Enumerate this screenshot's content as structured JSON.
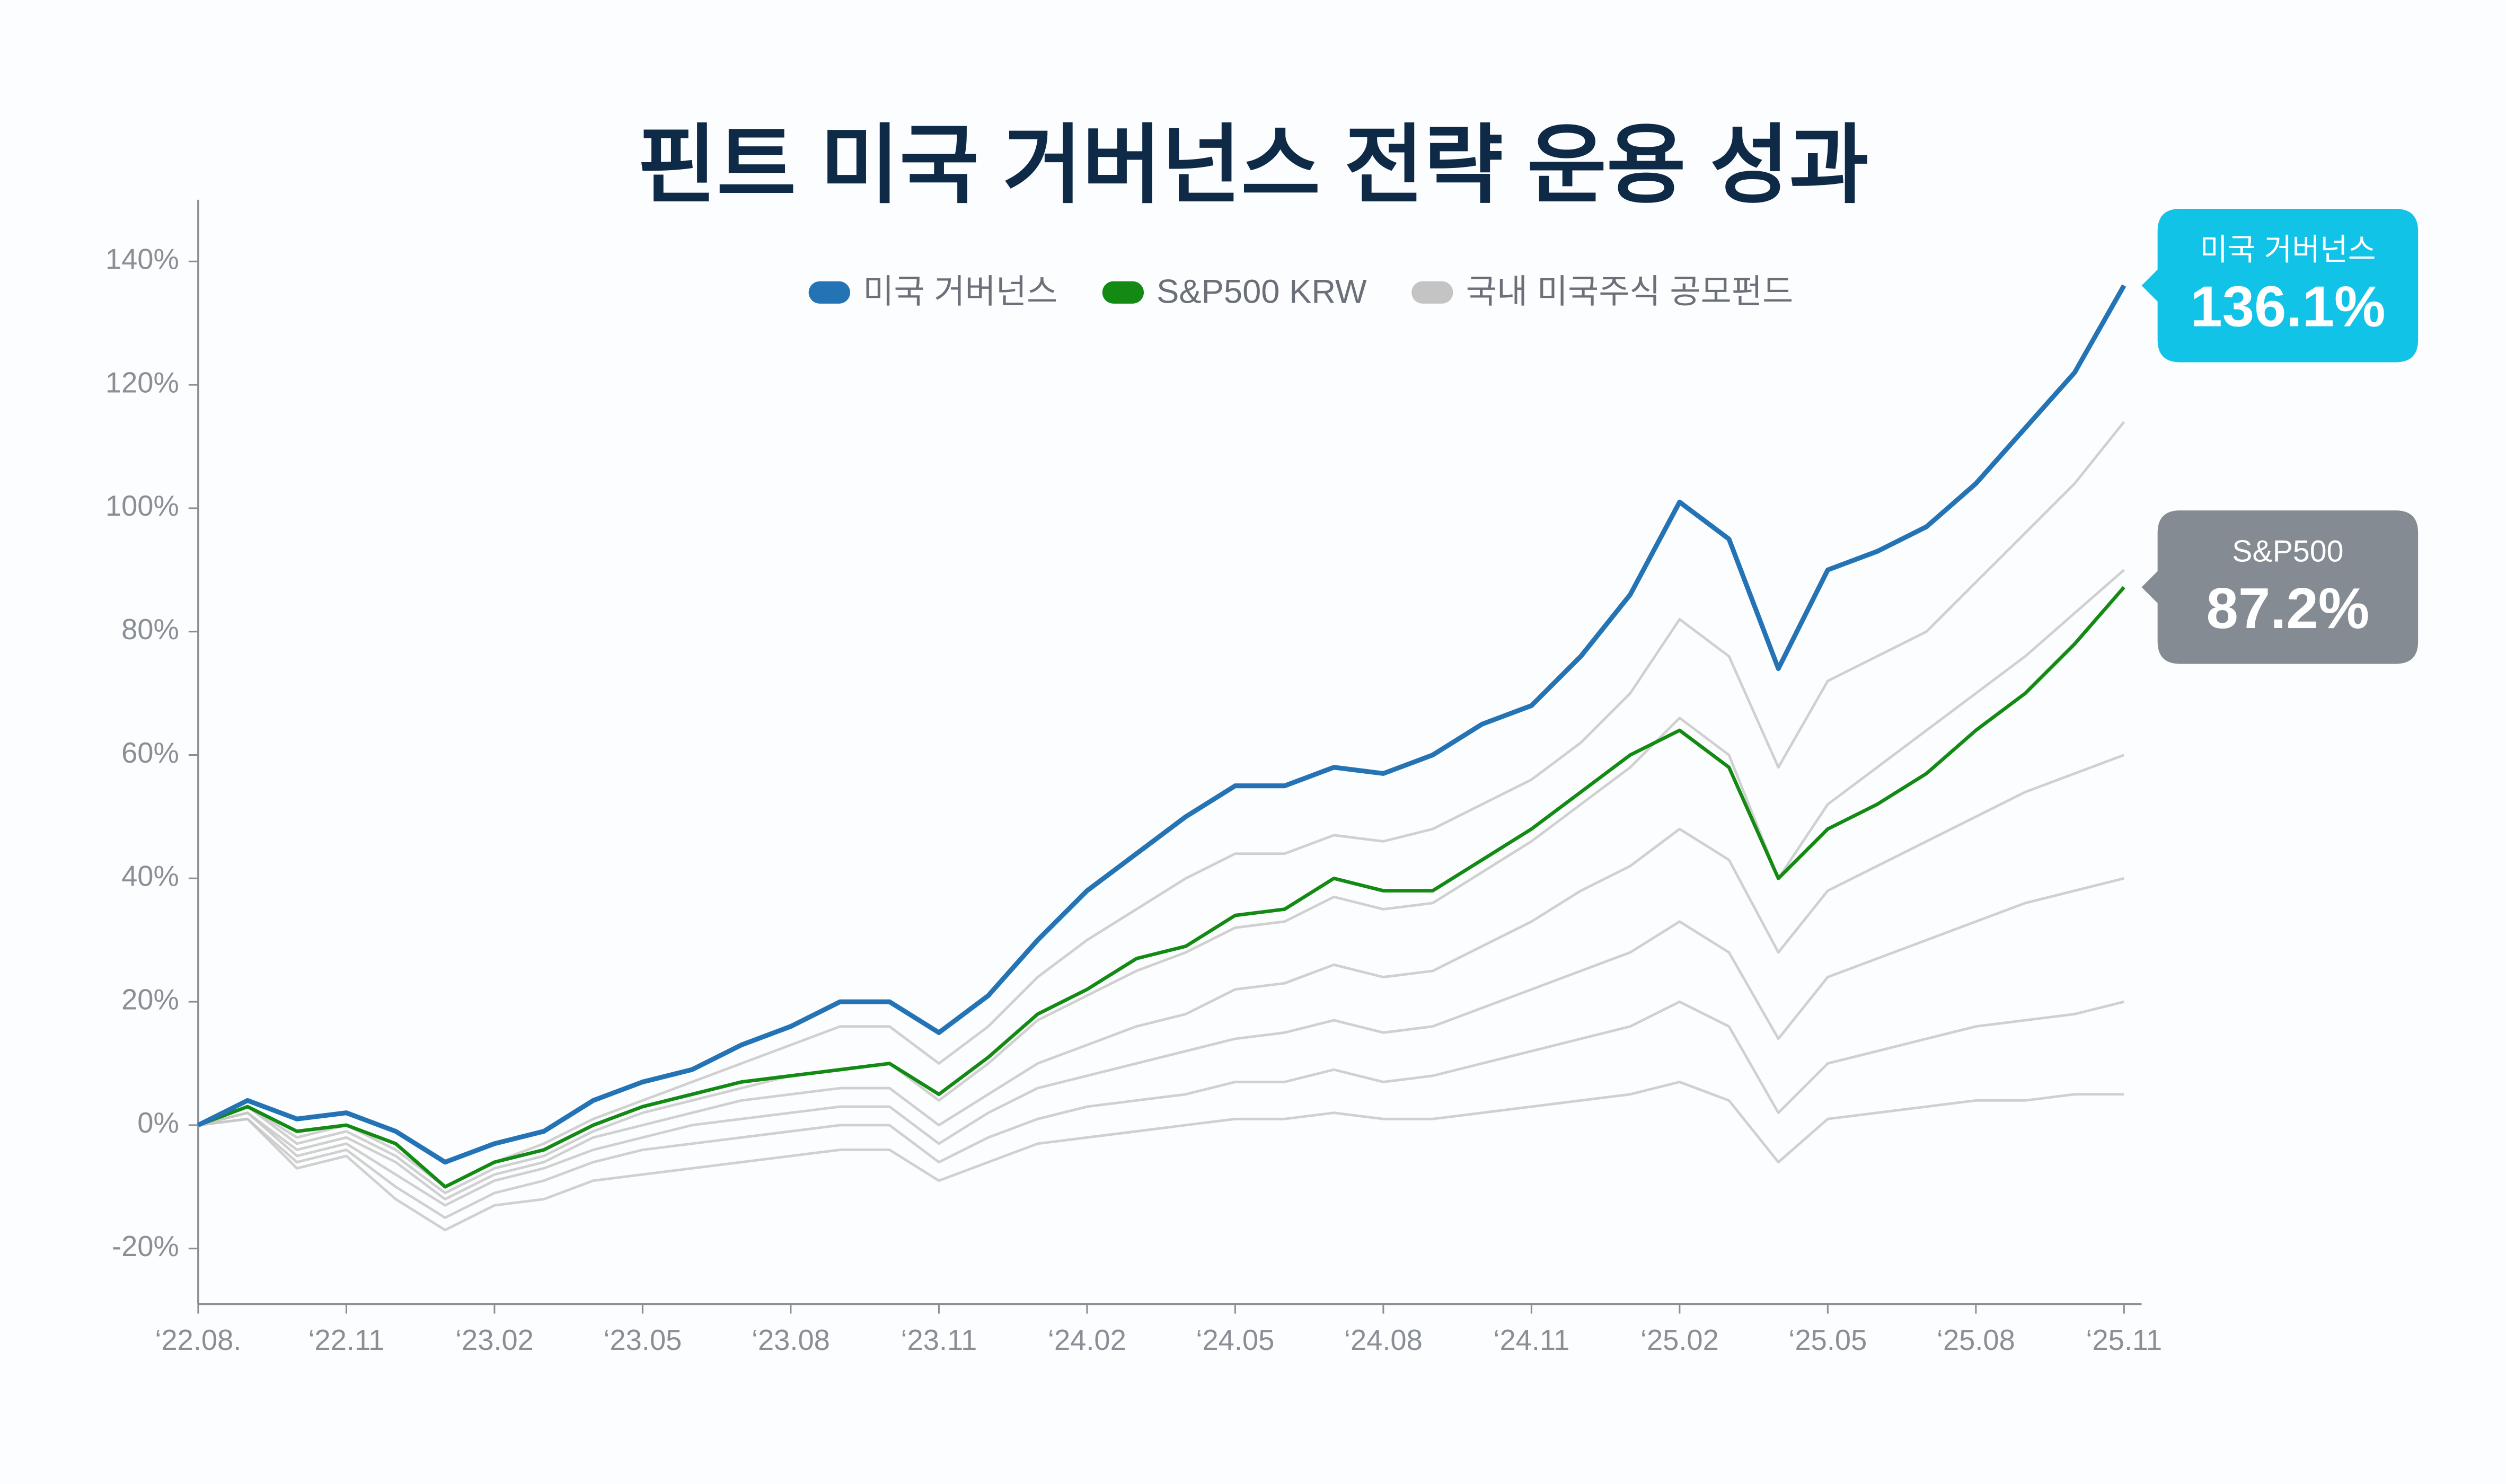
{
  "chart_data": {
    "type": "line",
    "title": "핀트 미국 거버넌스 전략 운용 성과",
    "x": [
      "2022-08",
      "2022-09",
      "2022-10",
      "2022-11",
      "2022-12",
      "2023-01",
      "2023-02",
      "2023-03",
      "2023-04",
      "2023-05",
      "2023-06",
      "2023-07",
      "2023-08",
      "2023-09",
      "2023-10",
      "2023-11",
      "2023-12",
      "2024-01",
      "2024-02",
      "2024-03",
      "2024-04",
      "2024-05",
      "2024-06",
      "2024-07",
      "2024-08",
      "2024-09",
      "2024-10",
      "2024-11",
      "2024-12",
      "2025-01",
      "2025-02",
      "2025-03",
      "2025-04",
      "2025-05",
      "2025-06",
      "2025-07",
      "2025-08",
      "2025-09",
      "2025-10",
      "2025-11"
    ],
    "xticks": [
      {
        "value": "2022-08",
        "label": "‘22.08."
      },
      {
        "value": "2022-11",
        "label": "‘22.11"
      },
      {
        "value": "2023-02",
        "label": "‘23.02"
      },
      {
        "value": "2023-05",
        "label": "‘23.05"
      },
      {
        "value": "2023-08",
        "label": "‘23.08"
      },
      {
        "value": "2023-11",
        "label": "‘23.11"
      },
      {
        "value": "2024-02",
        "label": "‘24.02"
      },
      {
        "value": "2024-05",
        "label": "‘24.05"
      },
      {
        "value": "2024-08",
        "label": "‘24.08"
      },
      {
        "value": "2024-11",
        "label": "‘24.11"
      },
      {
        "value": "2025-02",
        "label": "‘25.02"
      },
      {
        "value": "2025-05",
        "label": "‘25.05"
      },
      {
        "value": "2025-08",
        "label": "‘25.08"
      },
      {
        "value": "2025-11",
        "label": "‘25.11"
      }
    ],
    "ylim": [
      -29,
      150
    ],
    "yticks": [
      {
        "value": -20,
        "label": "-20%"
      },
      {
        "value": 0,
        "label": "0%"
      },
      {
        "value": 20,
        "label": "20%"
      },
      {
        "value": 40,
        "label": "40%"
      },
      {
        "value": 60,
        "label": "60%"
      },
      {
        "value": 80,
        "label": "80%"
      },
      {
        "value": 100,
        "label": "100%"
      },
      {
        "value": 120,
        "label": "120%"
      },
      {
        "value": 140,
        "label": "140%"
      }
    ],
    "legend": "top",
    "series": [
      {
        "name": "미국 거버넌스",
        "color": "#2474b5",
        "values": [
          0,
          4,
          1,
          2,
          -1,
          -6,
          -3,
          -1,
          4,
          7,
          9,
          13,
          16,
          20,
          20,
          15,
          21,
          30,
          38,
          44,
          50,
          55,
          55,
          58,
          57,
          60,
          65,
          68,
          76,
          86,
          101,
          95,
          74,
          90,
          93,
          97,
          104,
          113,
          122,
          136.1
        ],
        "callout": {
          "name": "미국 거버넌스",
          "value_label": "136.1%",
          "color": "#12c3e8"
        }
      },
      {
        "name": "S&P500 KRW",
        "color": "#138a13",
        "values": [
          0,
          3,
          -1,
          0,
          -3,
          -10,
          -6,
          -4,
          0,
          3,
          5,
          7,
          8,
          9,
          10,
          5,
          11,
          18,
          22,
          27,
          29,
          34,
          35,
          40,
          38,
          38,
          43,
          48,
          54,
          60,
          64,
          58,
          40,
          48,
          52,
          57,
          64,
          70,
          78,
          87.2
        ],
        "callout": {
          "name": "S&P500",
          "value_label": "87.2%",
          "color": "#858b92"
        }
      },
      {
        "name": "국내 미국주식 공모펀드",
        "color": "#c4c4c4",
        "lines": [
          [
            0,
            3,
            -2,
            0,
            -4,
            -10,
            -6,
            -3,
            1,
            4,
            7,
            10,
            13,
            16,
            16,
            10,
            16,
            24,
            30,
            35,
            40,
            44,
            44,
            47,
            46,
            48,
            52,
            56,
            62,
            70,
            82,
            76,
            58,
            72,
            76,
            80,
            88,
            96,
            104,
            114
          ],
          [
            0,
            3,
            -3,
            -1,
            -5,
            -11,
            -7,
            -5,
            -1,
            2,
            4,
            6,
            8,
            9,
            10,
            4,
            10,
            17,
            21,
            25,
            28,
            32,
            33,
            37,
            35,
            36,
            41,
            46,
            52,
            58,
            66,
            60,
            40,
            52,
            58,
            64,
            70,
            76,
            83,
            90
          ],
          [
            0,
            2,
            -4,
            -2,
            -6,
            -12,
            -8,
            -6,
            -2,
            0,
            2,
            4,
            5,
            6,
            6,
            0,
            5,
            10,
            13,
            16,
            18,
            22,
            23,
            26,
            24,
            25,
            29,
            33,
            38,
            42,
            48,
            43,
            28,
            38,
            42,
            46,
            50,
            54,
            57,
            60
          ],
          [
            0,
            2,
            -5,
            -3,
            -8,
            -13,
            -9,
            -7,
            -4,
            -2,
            0,
            1,
            2,
            3,
            3,
            -3,
            2,
            6,
            8,
            10,
            12,
            14,
            15,
            17,
            15,
            16,
            19,
            22,
            25,
            28,
            33,
            28,
            14,
            24,
            27,
            30,
            33,
            36,
            38,
            40
          ],
          [
            0,
            1,
            -6,
            -4,
            -10,
            -15,
            -11,
            -9,
            -6,
            -4,
            -3,
            -2,
            -1,
            0,
            0,
            -6,
            -2,
            1,
            3,
            4,
            5,
            7,
            7,
            9,
            7,
            8,
            10,
            12,
            14,
            16,
            20,
            16,
            2,
            10,
            12,
            14,
            16,
            17,
            18,
            20
          ],
          [
            0,
            1,
            -7,
            -5,
            -12,
            -17,
            -13,
            -12,
            -9,
            -8,
            -7,
            -6,
            -5,
            -4,
            -4,
            -9,
            -6,
            -3,
            -2,
            -1,
            0,
            1,
            1,
            2,
            1,
            1,
            2,
            3,
            4,
            5,
            7,
            4,
            -6,
            1,
            2,
            3,
            4,
            4,
            5,
            5
          ]
        ]
      }
    ]
  }
}
